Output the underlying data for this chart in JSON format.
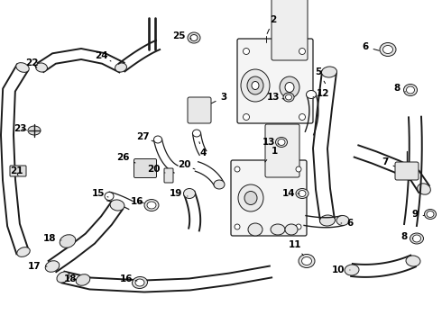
{
  "bg_color": "#ffffff",
  "line_color": "#1a1a1a",
  "fig_width": 4.9,
  "fig_height": 3.6,
  "dpi": 100,
  "label_fs": 7.5,
  "lw_hose": 1.4,
  "lw_part": 0.9,
  "lw_thin": 0.7
}
